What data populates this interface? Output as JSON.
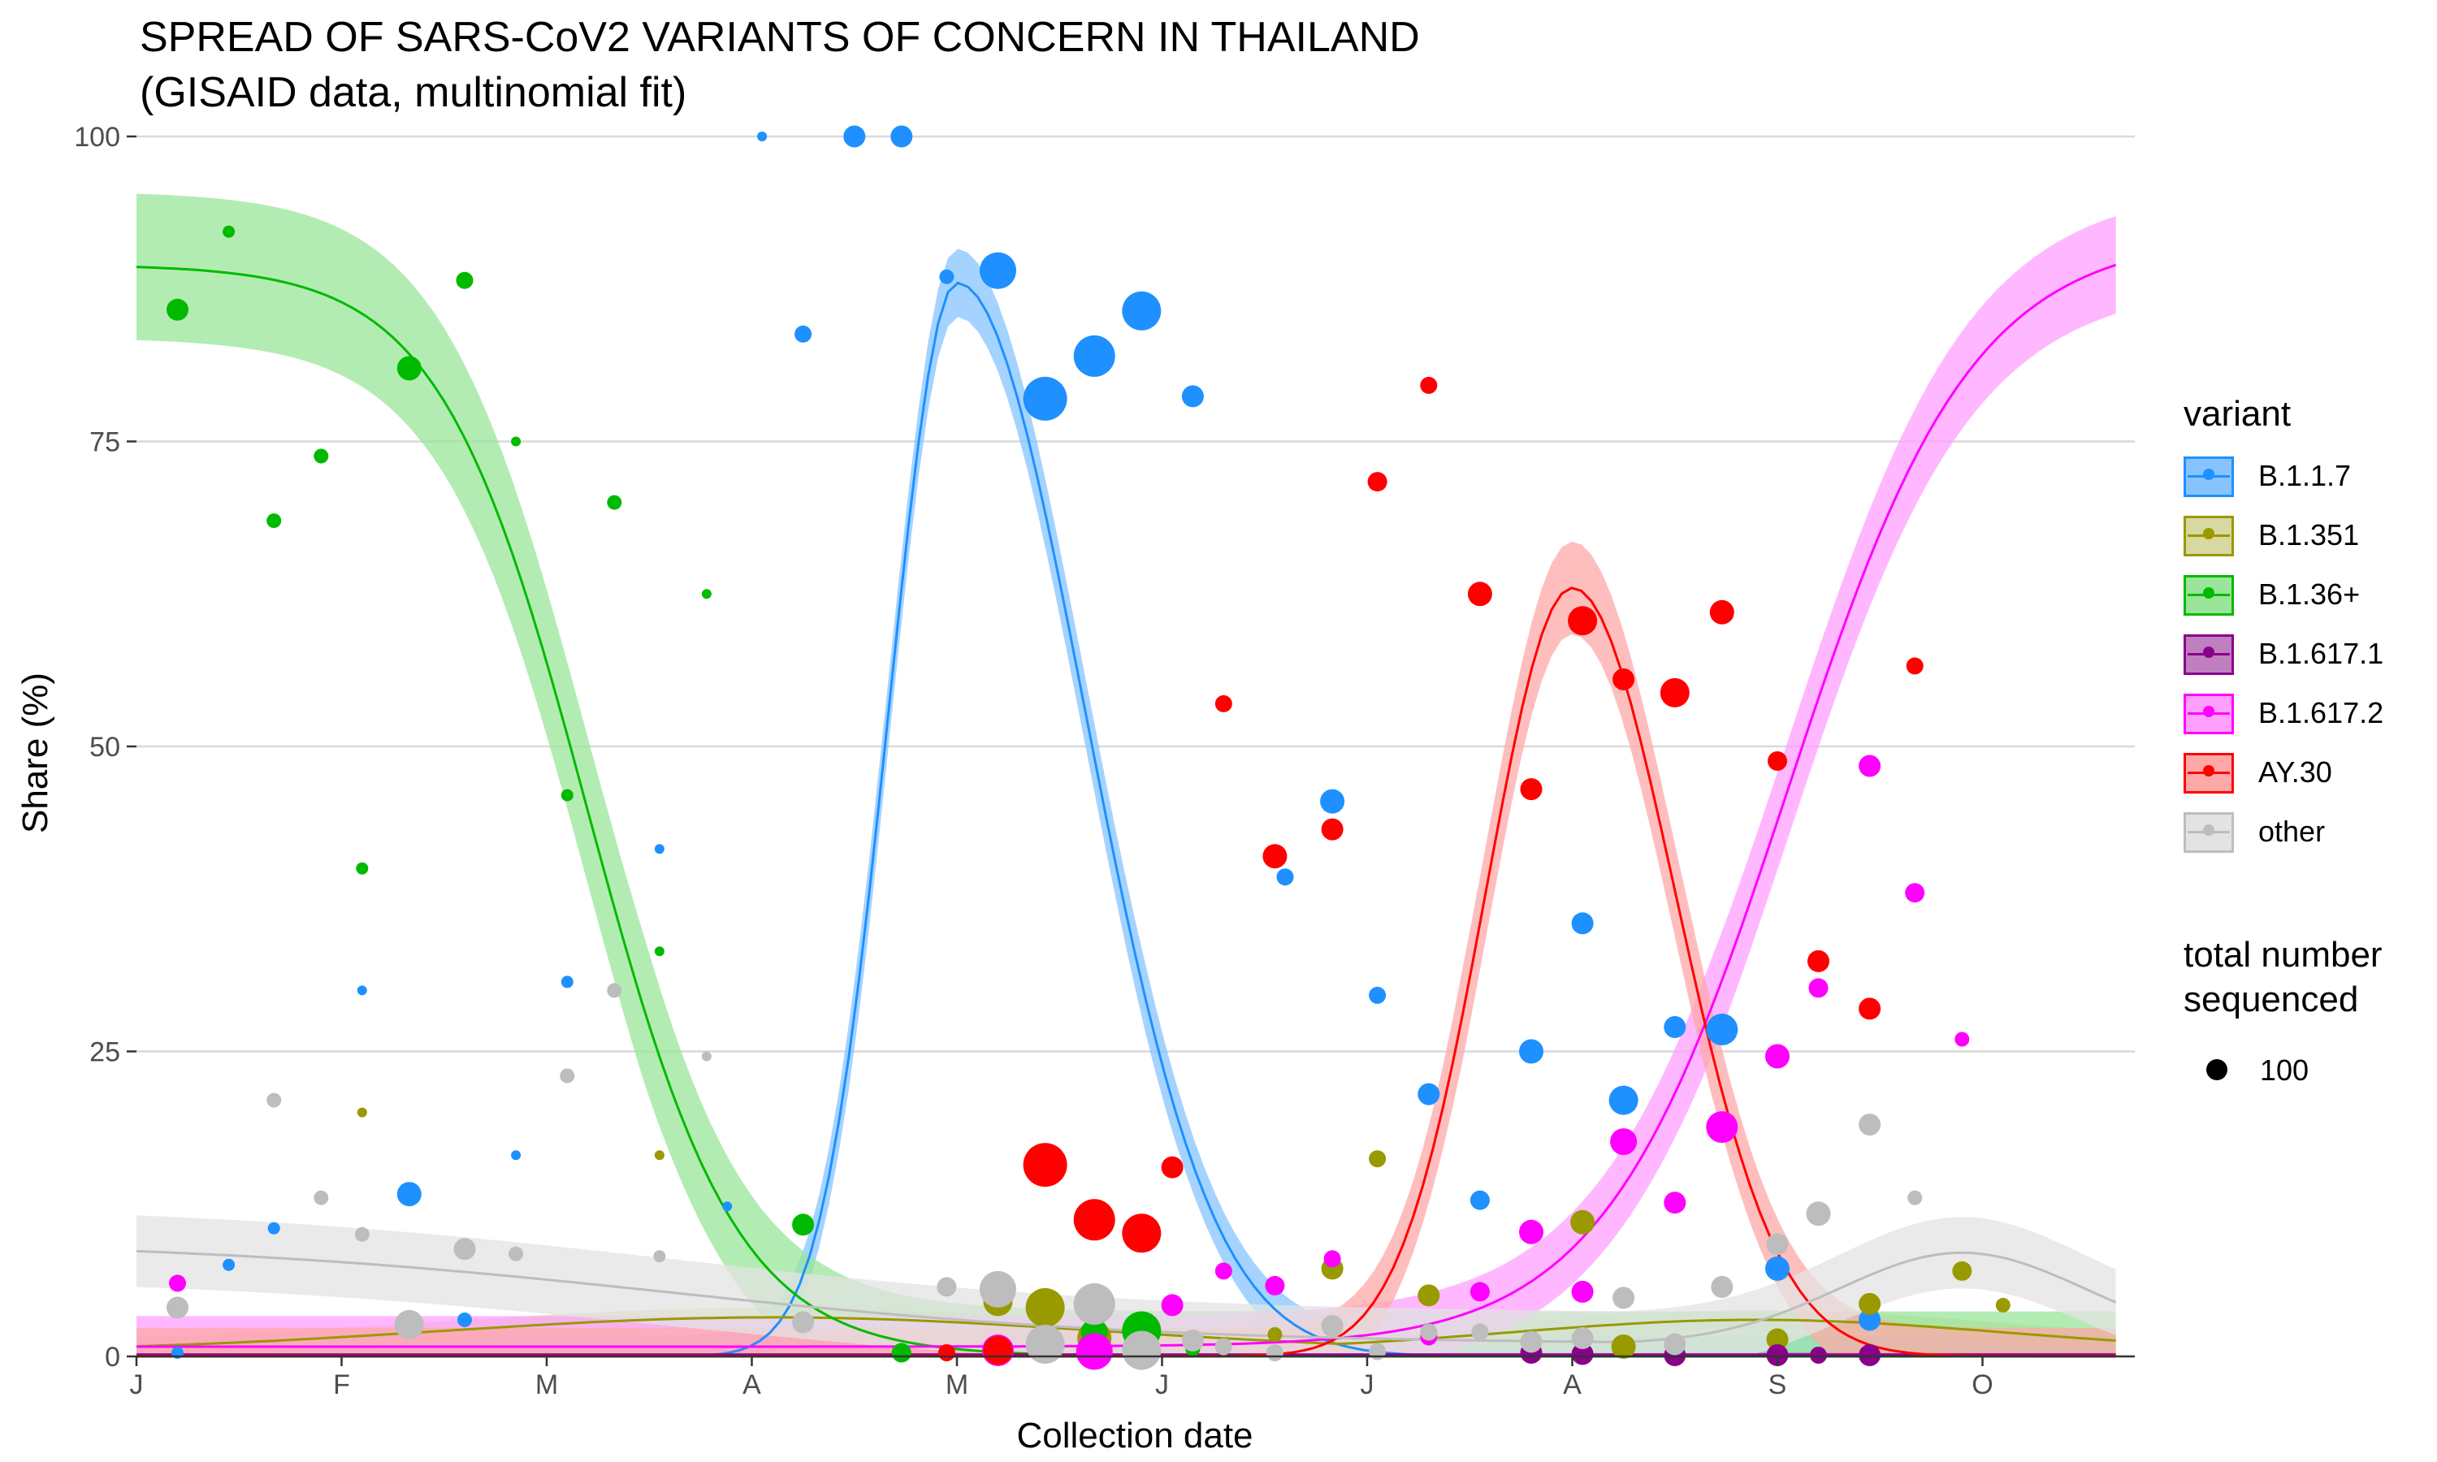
{
  "title_lines": [
    "SPREAD OF SARS-CoV2 VARIANTS OF CONCERN IN THAILAND",
    "(GISAID data, multinomial fit)"
  ],
  "chart_data": {
    "type": "scatter",
    "xlabel": "Collection date",
    "ylabel": "Share (%)",
    "x_axis": {
      "range_month": [
        0,
        9.65
      ],
      "tick_month": [
        0,
        1,
        2,
        3,
        4,
        5,
        6,
        7,
        8,
        9
      ],
      "tick_labels": [
        "J",
        "F",
        "M",
        "A",
        "M",
        "J",
        "J",
        "A",
        "S",
        "O"
      ]
    },
    "y_axis": {
      "range": [
        0,
        100
      ],
      "ticks": [
        0,
        25,
        50,
        75,
        100
      ],
      "tick_labels": [
        "0",
        "25",
        "50",
        "75",
        "100"
      ]
    },
    "grid": true,
    "legend": {
      "position": "right",
      "title": "variant"
    },
    "size_legend": {
      "title_lines": [
        "total number",
        "sequenced"
      ],
      "value": "100"
    },
    "series": [
      {
        "name": "B.1.1.7",
        "color": "#1E90FF",
        "fill": "#87C4FF",
        "fit": {
          "type": "logistic-peak",
          "peak_month": 4.0,
          "peak": 88,
          "rise_width": 0.33,
          "fall_width": 0.62
        },
        "band_halfwidth": 2.8,
        "points": [
          [
            0.2,
            0.3,
            5
          ],
          [
            0.45,
            7.5,
            5
          ],
          [
            0.67,
            10.5,
            5
          ],
          [
            1.1,
            30,
            4
          ],
          [
            1.33,
            13.3,
            10
          ],
          [
            1.6,
            3,
            6
          ],
          [
            1.85,
            16.5,
            4
          ],
          [
            2.1,
            30.7,
            5
          ],
          [
            2.55,
            41.6,
            4
          ],
          [
            2.88,
            12.3,
            4
          ],
          [
            3.05,
            100,
            4
          ],
          [
            3.25,
            83.8,
            7
          ],
          [
            3.5,
            100,
            9
          ],
          [
            3.73,
            100,
            9
          ],
          [
            3.95,
            88.5,
            6
          ],
          [
            4.2,
            89,
            15
          ],
          [
            4.43,
            78.5,
            18
          ],
          [
            4.67,
            82,
            17
          ],
          [
            4.9,
            85.7,
            16
          ],
          [
            5.15,
            78.7,
            9
          ],
          [
            5.6,
            39.3,
            7
          ],
          [
            5.83,
            45.5,
            10
          ],
          [
            6.05,
            29.6,
            7
          ],
          [
            6.3,
            21.5,
            9
          ],
          [
            6.55,
            12.8,
            8
          ],
          [
            6.8,
            25,
            10
          ],
          [
            7.05,
            35.5,
            9
          ],
          [
            7.25,
            21,
            12
          ],
          [
            7.5,
            27,
            9
          ],
          [
            7.73,
            26.8,
            13
          ],
          [
            8.0,
            7.2,
            10
          ],
          [
            8.2,
            11.6,
            8
          ],
          [
            8.45,
            3,
            9
          ]
        ]
      },
      {
        "name": "B.1.351",
        "color": "#999900",
        "fill": "#D8D8A0",
        "fit": {
          "type": "bump",
          "level": 3.2,
          "centre_month": 3.1,
          "width": 1.6,
          "baseline": 0.4,
          "second_bump": {
            "level": 3.0,
            "centre_month": 7.9,
            "width": 1.2
          }
        },
        "band_halfwidth": 1.2,
        "points": [
          [
            1.1,
            20,
            4
          ],
          [
            2.55,
            16.5,
            4
          ],
          [
            4.2,
            4.5,
            12
          ],
          [
            4.43,
            4,
            16
          ],
          [
            4.67,
            1.5,
            14
          ],
          [
            5.15,
            1,
            6
          ],
          [
            5.55,
            1.8,
            6
          ],
          [
            5.83,
            7.2,
            9
          ],
          [
            6.05,
            16.2,
            7
          ],
          [
            6.3,
            5,
            9
          ],
          [
            7.05,
            11,
            10
          ],
          [
            7.25,
            0.8,
            10
          ],
          [
            8.0,
            1.4,
            9
          ],
          [
            8.45,
            4.3,
            9
          ],
          [
            8.9,
            7,
            8
          ],
          [
            9.1,
            4.2,
            6
          ]
        ]
      },
      {
        "name": "B.1.36+",
        "color": "#00BA00",
        "fill": "#9AE59A",
        "fit": {
          "type": "logistic-fall",
          "start": 89.5,
          "mid_month": 2.2,
          "width": 0.36
        },
        "band_halfwidth": 6,
        "points": [
          [
            0.2,
            85.8,
            9
          ],
          [
            0.45,
            92.2,
            5
          ],
          [
            0.67,
            68.5,
            6
          ],
          [
            0.9,
            73.8,
            6
          ],
          [
            1.1,
            40,
            5
          ],
          [
            1.33,
            81,
            10
          ],
          [
            1.6,
            88.2,
            7
          ],
          [
            1.85,
            75,
            4
          ],
          [
            2.1,
            46,
            5
          ],
          [
            2.33,
            70,
            6
          ],
          [
            2.55,
            33.2,
            4
          ],
          [
            2.78,
            62.5,
            4
          ],
          [
            3.25,
            10.8,
            9
          ],
          [
            3.73,
            0.3,
            8
          ],
          [
            4.2,
            5.5,
            10
          ],
          [
            4.67,
            2,
            11
          ],
          [
            4.9,
            2.1,
            16
          ],
          [
            5.15,
            0.6,
            6
          ]
        ]
      },
      {
        "name": "B.1.617.1",
        "color": "#8B008B",
        "fill": "#C080C0",
        "fit": {
          "type": "flat",
          "level": 0.15
        },
        "band_halfwidth": 0.3,
        "points": [
          [
            6.8,
            0.3,
            9
          ],
          [
            7.05,
            0.2,
            9
          ],
          [
            7.5,
            0.1,
            9
          ],
          [
            8.0,
            0.1,
            9
          ],
          [
            8.2,
            0.1,
            7
          ],
          [
            8.45,
            0.1,
            9
          ]
        ]
      },
      {
        "name": "B.1.617.2",
        "color": "#FF00FF",
        "fill": "#FFA0FF",
        "fit": {
          "type": "logistic-rise",
          "base": 0.8,
          "end": 92,
          "mid_month": 8.05,
          "width": 0.45
        },
        "band_halfwidth": 4,
        "points": [
          [
            0.2,
            6,
            7
          ],
          [
            4.2,
            0.5,
            13
          ],
          [
            4.67,
            0.4,
            15
          ],
          [
            4.9,
            0.3,
            14
          ],
          [
            5.05,
            4.2,
            9
          ],
          [
            5.3,
            7,
            7
          ],
          [
            5.55,
            5.8,
            8
          ],
          [
            5.83,
            8,
            7
          ],
          [
            6.3,
            1.6,
            7
          ],
          [
            6.55,
            5.3,
            8
          ],
          [
            6.8,
            10.2,
            10
          ],
          [
            7.05,
            5.3,
            9
          ],
          [
            7.25,
            17.6,
            11
          ],
          [
            7.5,
            12.6,
            9
          ],
          [
            7.73,
            18.8,
            13
          ],
          [
            8.0,
            24.6,
            10
          ],
          [
            8.2,
            30.2,
            8
          ],
          [
            8.45,
            48.4,
            9
          ],
          [
            8.67,
            38,
            8
          ],
          [
            8.9,
            26,
            6
          ]
        ]
      },
      {
        "name": "AY.30",
        "color": "#FF0000",
        "fill": "#FFA8A8",
        "fit": {
          "type": "logistic-peak",
          "peak_month": 7.0,
          "peak": 63,
          "rise_width": 0.42,
          "fall_width": 0.5
        },
        "band_halfwidth": 3.8,
        "points": [
          [
            3.95,
            0.3,
            7
          ],
          [
            4.2,
            0.5,
            12
          ],
          [
            4.43,
            15.7,
            18
          ],
          [
            4.67,
            11.2,
            17
          ],
          [
            4.9,
            10.1,
            16
          ],
          [
            5.05,
            15.5,
            9
          ],
          [
            5.3,
            53.5,
            7
          ],
          [
            5.55,
            41,
            10
          ],
          [
            5.83,
            43.2,
            9
          ],
          [
            6.05,
            71.7,
            8
          ],
          [
            6.3,
            79.6,
            7
          ],
          [
            6.55,
            62.5,
            10
          ],
          [
            6.8,
            46.5,
            9
          ],
          [
            7.05,
            60.3,
            12
          ],
          [
            7.25,
            55.5,
            9
          ],
          [
            7.5,
            54.4,
            12
          ],
          [
            7.73,
            61,
            10
          ],
          [
            8.0,
            48.8,
            8
          ],
          [
            8.2,
            32.4,
            9
          ],
          [
            8.45,
            28.5,
            9
          ],
          [
            8.67,
            56.6,
            7
          ]
        ]
      },
      {
        "name": "other",
        "color": "#BDBDBD",
        "fill": "#E3E3E3",
        "fit": {
          "type": "decay-bump",
          "start": 9.5,
          "decay_width": 1.2,
          "decay_centre": 2.6,
          "baseline": 1,
          "second_bump": {
            "level": 8.5,
            "centre_month": 8.9,
            "width": 0.6
          }
        },
        "band_halfwidth": 4,
        "points": [
          [
            0.2,
            4,
            9
          ],
          [
            0.67,
            21,
            6
          ],
          [
            0.9,
            13,
            6
          ],
          [
            1.1,
            10,
            6
          ],
          [
            1.33,
            2.6,
            12
          ],
          [
            1.6,
            8.8,
            9
          ],
          [
            1.85,
            8.4,
            6
          ],
          [
            2.1,
            23,
            6
          ],
          [
            2.33,
            30,
            6
          ],
          [
            2.55,
            8.2,
            5
          ],
          [
            2.78,
            24.6,
            4
          ],
          [
            3.25,
            2.8,
            9
          ],
          [
            3.95,
            5.7,
            8
          ],
          [
            4.2,
            5.5,
            15
          ],
          [
            4.43,
            1,
            16
          ],
          [
            4.67,
            4.3,
            17
          ],
          [
            4.9,
            0.5,
            16
          ],
          [
            5.15,
            1.3,
            9
          ],
          [
            5.3,
            0.8,
            7
          ],
          [
            5.55,
            0.3,
            7
          ],
          [
            5.83,
            2.5,
            9
          ],
          [
            6.05,
            0.4,
            7
          ],
          [
            6.3,
            2,
            7
          ],
          [
            6.55,
            2,
            7
          ],
          [
            6.8,
            1.2,
            9
          ],
          [
            7.05,
            1.5,
            9
          ],
          [
            7.25,
            4.8,
            9
          ],
          [
            7.5,
            1,
            9
          ],
          [
            7.73,
            5.7,
            9
          ],
          [
            8.0,
            9.2,
            9
          ],
          [
            8.2,
            11.7,
            10
          ],
          [
            8.45,
            19,
            9
          ],
          [
            8.67,
            13,
            6
          ]
        ]
      }
    ]
  }
}
